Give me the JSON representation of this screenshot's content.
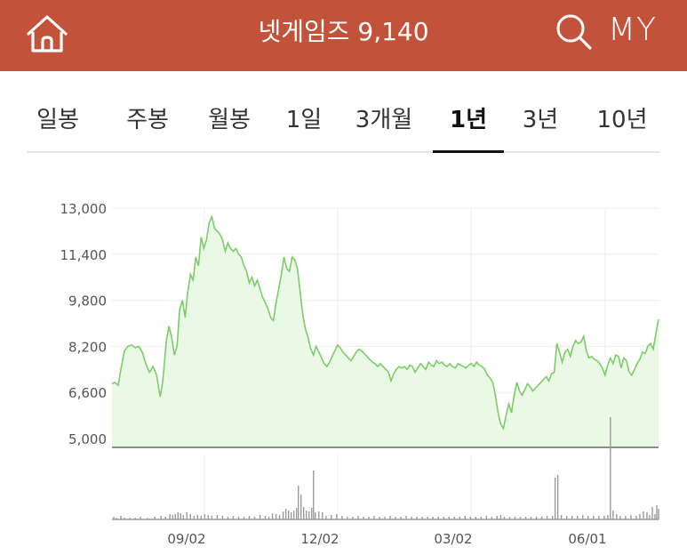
{
  "header": {
    "title": "넷게임즈 9,140",
    "home_icon": "home-icon",
    "search_icon": "search-icon",
    "my_label": "MY",
    "bg_color": "#c2533a"
  },
  "tabs": [
    {
      "label": "일봉",
      "active": false
    },
    {
      "label": "주봉",
      "active": false
    },
    {
      "label": "월봉",
      "active": false
    },
    {
      "label": "1일",
      "active": false
    },
    {
      "label": "3개월",
      "active": false
    },
    {
      "label": "1년",
      "active": true
    },
    {
      "label": "3년",
      "active": false
    },
    {
      "label": "10년",
      "active": false
    }
  ],
  "chart_data": {
    "type": "area",
    "y_ticks": [
      "13,000",
      "11,400",
      "9,800",
      "8,200",
      "6,600",
      "5,000"
    ],
    "y_tick_values": [
      13000,
      11400,
      9800,
      8200,
      6600,
      5000
    ],
    "ylim": [
      5000,
      13000
    ],
    "x_ticks": [
      "09/02",
      "12/02",
      "03/02",
      "06/01"
    ],
    "line_color": "#7ecb6a",
    "fill_color": "#eaf8e6",
    "grid": true,
    "price_series": [
      [
        0,
        6900
      ],
      [
        3,
        6950
      ],
      [
        7,
        6850
      ],
      [
        10,
        7400
      ],
      [
        14,
        8050
      ],
      [
        18,
        8200
      ],
      [
        22,
        8250
      ],
      [
        26,
        8150
      ],
      [
        30,
        8200
      ],
      [
        34,
        8000
      ],
      [
        38,
        7600
      ],
      [
        42,
        7300
      ],
      [
        46,
        7500
      ],
      [
        50,
        7200
      ],
      [
        54,
        6450
      ],
      [
        57,
        7000
      ],
      [
        61,
        8400
      ],
      [
        64,
        8900
      ],
      [
        67,
        8500
      ],
      [
        70,
        7900
      ],
      [
        73,
        8200
      ],
      [
        76,
        9500
      ],
      [
        79,
        9800
      ],
      [
        82,
        9200
      ],
      [
        85,
        10100
      ],
      [
        88,
        10700
      ],
      [
        91,
        10500
      ],
      [
        94,
        11300
      ],
      [
        97,
        11000
      ],
      [
        100,
        12000
      ],
      [
        103,
        11600
      ],
      [
        106,
        11900
      ],
      [
        109,
        12500
      ],
      [
        112,
        12700
      ],
      [
        115,
        12300
      ],
      [
        118,
        12200
      ],
      [
        121,
        12100
      ],
      [
        124,
        11900
      ],
      [
        127,
        11500
      ],
      [
        130,
        11800
      ],
      [
        133,
        11600
      ],
      [
        136,
        11500
      ],
      [
        139,
        11600
      ],
      [
        142,
        11400
      ],
      [
        145,
        11300
      ],
      [
        148,
        11000
      ],
      [
        151,
        10800
      ],
      [
        154,
        10400
      ],
      [
        157,
        10600
      ],
      [
        160,
        10300
      ],
      [
        163,
        10500
      ],
      [
        166,
        10200
      ],
      [
        169,
        9900
      ],
      [
        172,
        9700
      ],
      [
        175,
        9500
      ],
      [
        178,
        9200
      ],
      [
        181,
        9100
      ],
      [
        184,
        9700
      ],
      [
        187,
        10200
      ],
      [
        190,
        10700
      ],
      [
        193,
        11300
      ],
      [
        196,
        10900
      ],
      [
        199,
        10800
      ],
      [
        202,
        11300
      ],
      [
        205,
        11200
      ],
      [
        208,
        10900
      ],
      [
        211,
        10100
      ],
      [
        214,
        9300
      ],
      [
        217,
        8800
      ],
      [
        220,
        8500
      ],
      [
        223,
        8100
      ],
      [
        226,
        7900
      ],
      [
        229,
        8200
      ],
      [
        232,
        8000
      ],
      [
        235,
        7800
      ],
      [
        238,
        7600
      ],
      [
        241,
        7500
      ],
      [
        244,
        7650
      ],
      [
        247,
        7850
      ],
      [
        250,
        8050
      ],
      [
        253,
        8250
      ],
      [
        256,
        8150
      ],
      [
        259,
        8000
      ],
      [
        262,
        7900
      ],
      [
        265,
        7800
      ],
      [
        268,
        7700
      ],
      [
        271,
        7850
      ],
      [
        274,
        8000
      ],
      [
        277,
        8100
      ],
      [
        280,
        8050
      ],
      [
        283,
        7950
      ],
      [
        286,
        7850
      ],
      [
        289,
        7750
      ],
      [
        292,
        7650
      ],
      [
        295,
        7600
      ],
      [
        298,
        7500
      ],
      [
        301,
        7600
      ],
      [
        304,
        7500
      ],
      [
        307,
        7400
      ],
      [
        310,
        7300
      ],
      [
        313,
        7000
      ],
      [
        316,
        7250
      ],
      [
        319,
        7400
      ],
      [
        322,
        7500
      ],
      [
        325,
        7450
      ],
      [
        328,
        7500
      ],
      [
        331,
        7400
      ],
      [
        334,
        7550
      ],
      [
        337,
        7500
      ],
      [
        340,
        7300
      ],
      [
        343,
        7450
      ],
      [
        346,
        7600
      ],
      [
        349,
        7500
      ],
      [
        352,
        7400
      ],
      [
        355,
        7650
      ],
      [
        358,
        7550
      ],
      [
        361,
        7500
      ],
      [
        364,
        7700
      ],
      [
        367,
        7600
      ],
      [
        370,
        7650
      ],
      [
        373,
        7550
      ],
      [
        376,
        7500
      ],
      [
        379,
        7600
      ],
      [
        382,
        7500
      ],
      [
        385,
        7450
      ],
      [
        388,
        7600
      ],
      [
        391,
        7550
      ],
      [
        394,
        7500
      ],
      [
        397,
        7450
      ],
      [
        400,
        7550
      ],
      [
        403,
        7600
      ],
      [
        406,
        7500
      ],
      [
        409,
        7650
      ],
      [
        412,
        7550
      ],
      [
        415,
        7500
      ],
      [
        418,
        7400
      ],
      [
        421,
        7200
      ],
      [
        424,
        7100
      ],
      [
        427,
        6950
      ],
      [
        430,
        6500
      ],
      [
        433,
        5900
      ],
      [
        436,
        5500
      ],
      [
        439,
        5350
      ],
      [
        442,
        5800
      ],
      [
        445,
        6200
      ],
      [
        448,
        5900
      ],
      [
        451,
        6500
      ],
      [
        454,
        6950
      ],
      [
        457,
        6650
      ],
      [
        460,
        6500
      ],
      [
        463,
        6700
      ],
      [
        466,
        6900
      ],
      [
        469,
        6800
      ],
      [
        472,
        6650
      ],
      [
        475,
        6750
      ],
      [
        478,
        6850
      ],
      [
        481,
        6950
      ],
      [
        484,
        7050
      ],
      [
        487,
        7150
      ],
      [
        490,
        7000
      ],
      [
        493,
        7250
      ],
      [
        496,
        7300
      ],
      [
        499,
        8300
      ],
      [
        502,
        8000
      ],
      [
        505,
        7650
      ],
      [
        508,
        8000
      ],
      [
        511,
        8100
      ],
      [
        514,
        7850
      ],
      [
        517,
        8200
      ],
      [
        520,
        8400
      ],
      [
        523,
        8300
      ],
      [
        526,
        8350
      ],
      [
        529,
        8550
      ],
      [
        532,
        8050
      ],
      [
        535,
        7800
      ],
      [
        538,
        7850
      ],
      [
        541,
        7750
      ],
      [
        544,
        7700
      ],
      [
        547,
        7600
      ],
      [
        550,
        7450
      ],
      [
        553,
        7200
      ],
      [
        556,
        7550
      ],
      [
        559,
        7800
      ],
      [
        562,
        7600
      ],
      [
        565,
        7900
      ],
      [
        568,
        7850
      ],
      [
        571,
        7450
      ],
      [
        574,
        7800
      ],
      [
        577,
        7700
      ],
      [
        580,
        7300
      ],
      [
        583,
        7200
      ],
      [
        586,
        7400
      ],
      [
        589,
        7600
      ],
      [
        592,
        7750
      ],
      [
        595,
        8000
      ],
      [
        598,
        7950
      ],
      [
        601,
        8200
      ],
      [
        604,
        8300
      ],
      [
        607,
        8100
      ],
      [
        610,
        8650
      ],
      [
        613,
        9140
      ]
    ],
    "volume_series": [
      [
        2,
        3
      ],
      [
        5,
        2
      ],
      [
        10,
        4
      ],
      [
        14,
        2
      ],
      [
        20,
        2
      ],
      [
        26,
        2
      ],
      [
        32,
        3
      ],
      [
        40,
        2
      ],
      [
        48,
        3
      ],
      [
        55,
        4
      ],
      [
        60,
        3
      ],
      [
        65,
        6
      ],
      [
        68,
        5
      ],
      [
        71,
        6
      ],
      [
        74,
        8
      ],
      [
        77,
        7
      ],
      [
        80,
        5
      ],
      [
        84,
        8
      ],
      [
        88,
        6
      ],
      [
        92,
        4
      ],
      [
        96,
        5
      ],
      [
        100,
        4
      ],
      [
        104,
        6
      ],
      [
        108,
        5
      ],
      [
        112,
        4
      ],
      [
        118,
        5
      ],
      [
        124,
        4
      ],
      [
        130,
        3
      ],
      [
        136,
        4
      ],
      [
        142,
        3
      ],
      [
        148,
        3
      ],
      [
        154,
        4
      ],
      [
        160,
        3
      ],
      [
        166,
        5
      ],
      [
        172,
        4
      ],
      [
        176,
        3
      ],
      [
        180,
        7
      ],
      [
        184,
        6
      ],
      [
        188,
        5
      ],
      [
        192,
        9
      ],
      [
        195,
        12
      ],
      [
        198,
        10
      ],
      [
        201,
        8
      ],
      [
        204,
        10
      ],
      [
        207,
        13
      ],
      [
        209,
        38
      ],
      [
        212,
        28
      ],
      [
        215,
        14
      ],
      [
        218,
        10
      ],
      [
        221,
        9
      ],
      [
        224,
        13
      ],
      [
        226,
        55
      ],
      [
        228,
        8
      ],
      [
        232,
        9
      ],
      [
        236,
        8
      ],
      [
        240,
        4
      ],
      [
        246,
        5
      ],
      [
        252,
        6
      ],
      [
        258,
        4
      ],
      [
        264,
        3
      ],
      [
        270,
        3
      ],
      [
        276,
        4
      ],
      [
        282,
        3
      ],
      [
        288,
        3
      ],
      [
        294,
        4
      ],
      [
        300,
        3
      ],
      [
        306,
        3
      ],
      [
        312,
        4
      ],
      [
        318,
        3
      ],
      [
        324,
        3
      ],
      [
        330,
        4
      ],
      [
        336,
        3
      ],
      [
        342,
        3
      ],
      [
        348,
        3
      ],
      [
        354,
        3
      ],
      [
        360,
        3
      ],
      [
        366,
        3
      ],
      [
        372,
        3
      ],
      [
        378,
        3
      ],
      [
        384,
        3
      ],
      [
        390,
        3
      ],
      [
        396,
        4
      ],
      [
        402,
        3
      ],
      [
        408,
        3
      ],
      [
        414,
        3
      ],
      [
        420,
        4
      ],
      [
        426,
        3
      ],
      [
        432,
        4
      ],
      [
        436,
        5
      ],
      [
        440,
        3
      ],
      [
        446,
        3
      ],
      [
        452,
        3
      ],
      [
        458,
        3
      ],
      [
        464,
        3
      ],
      [
        470,
        3
      ],
      [
        476,
        3
      ],
      [
        482,
        3
      ],
      [
        488,
        4
      ],
      [
        494,
        4
      ],
      [
        497,
        47
      ],
      [
        500,
        50
      ],
      [
        504,
        5
      ],
      [
        510,
        4
      ],
      [
        516,
        4
      ],
      [
        522,
        4
      ],
      [
        528,
        5
      ],
      [
        534,
        4
      ],
      [
        540,
        4
      ],
      [
        546,
        4
      ],
      [
        552,
        4
      ],
      [
        556,
        5
      ],
      [
        559,
        115
      ],
      [
        562,
        10
      ],
      [
        566,
        6
      ],
      [
        570,
        4
      ],
      [
        576,
        4
      ],
      [
        582,
        5
      ],
      [
        588,
        4
      ],
      [
        592,
        6
      ],
      [
        596,
        9
      ],
      [
        600,
        8
      ],
      [
        603,
        5
      ],
      [
        606,
        14
      ],
      [
        609,
        6
      ],
      [
        611,
        16
      ],
      [
        613,
        12
      ]
    ]
  }
}
